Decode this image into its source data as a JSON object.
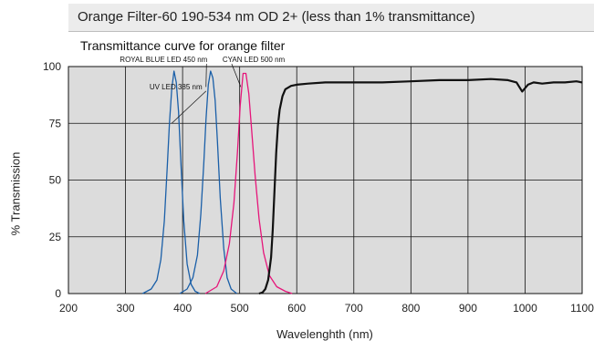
{
  "header": {
    "title": "Orange Filter-60 190-534 nm OD 2+ (less than 1% transmittance)"
  },
  "chart_data": {
    "type": "line",
    "title": "Transmittance curve for orange filter",
    "xlabel": "Wavelenghth (nm)",
    "ylabel": "% Transmission",
    "xlim": [
      200,
      1100
    ],
    "ylim": [
      0,
      100
    ],
    "x_ticks": [
      200,
      300,
      400,
      500,
      600,
      700,
      800,
      900,
      1000,
      1100
    ],
    "y_ticks": [
      0,
      25,
      50,
      75,
      100
    ],
    "grid": true,
    "series": [
      {
        "name": "",
        "color": "#1a5fa8",
        "label": "UV LED 385 nm",
        "x": [
          330,
          345,
          355,
          362,
          368,
          373,
          377,
          381,
          385,
          389,
          393,
          397,
          402,
          408,
          415,
          422,
          430
        ],
        "y": [
          0,
          2,
          6,
          15,
          32,
          55,
          75,
          90,
          98,
          93,
          80,
          58,
          32,
          13,
          4,
          1,
          0
        ]
      },
      {
        "name": "",
        "color": "#1a5fa8",
        "label": "ROYAL BLUE LED 450 nm",
        "x": [
          395,
          408,
          418,
          426,
          432,
          437,
          441,
          445,
          449,
          453,
          457,
          461,
          466,
          472,
          478,
          485,
          495
        ],
        "y": [
          0,
          2,
          7,
          17,
          35,
          57,
          77,
          92,
          98,
          95,
          85,
          67,
          42,
          20,
          7,
          2,
          0
        ]
      },
      {
        "name": "",
        "color": "#e6157a",
        "label": "CYAN LED 500 nm",
        "x": [
          440,
          460,
          472,
          482,
          490,
          496,
          501,
          506,
          511,
          516,
          521,
          527,
          534,
          542,
          552,
          565,
          580,
          592
        ],
        "y": [
          0,
          3,
          10,
          22,
          40,
          62,
          83,
          97,
          97,
          88,
          72,
          52,
          33,
          18,
          8,
          3,
          1,
          0
        ]
      },
      {
        "name": "",
        "color": "#111111",
        "label": "",
        "x": [
          534,
          540,
          545,
          550,
          555,
          558,
          561,
          564,
          567,
          570,
          575,
          580,
          590,
          600,
          620,
          650,
          700,
          750,
          800,
          850,
          900,
          940,
          970,
          985,
          995,
          1005,
          1015,
          1030,
          1050,
          1070,
          1090,
          1100
        ],
        "y": [
          0,
          0.5,
          2,
          6,
          16,
          28,
          45,
          62,
          74,
          81,
          87,
          90,
          91.5,
          92,
          92.5,
          93,
          93,
          93,
          93.5,
          94,
          94,
          94.5,
          94,
          93,
          89,
          92,
          93,
          92.5,
          93,
          93,
          93.5,
          93
        ]
      }
    ],
    "annotations": [
      {
        "text": "UV LED 385 nm",
        "x": 342,
        "y": 90,
        "target_x": 381,
        "target_y": 75
      },
      {
        "text": "ROYAL BLUE LED 450 nm",
        "x": 290,
        "y": 102,
        "target_x": 441,
        "target_y": 91
      },
      {
        "text": "CYAN LED 500 nm",
        "x": 470,
        "y": 102,
        "target_x": 502,
        "target_y": 91
      }
    ]
  }
}
